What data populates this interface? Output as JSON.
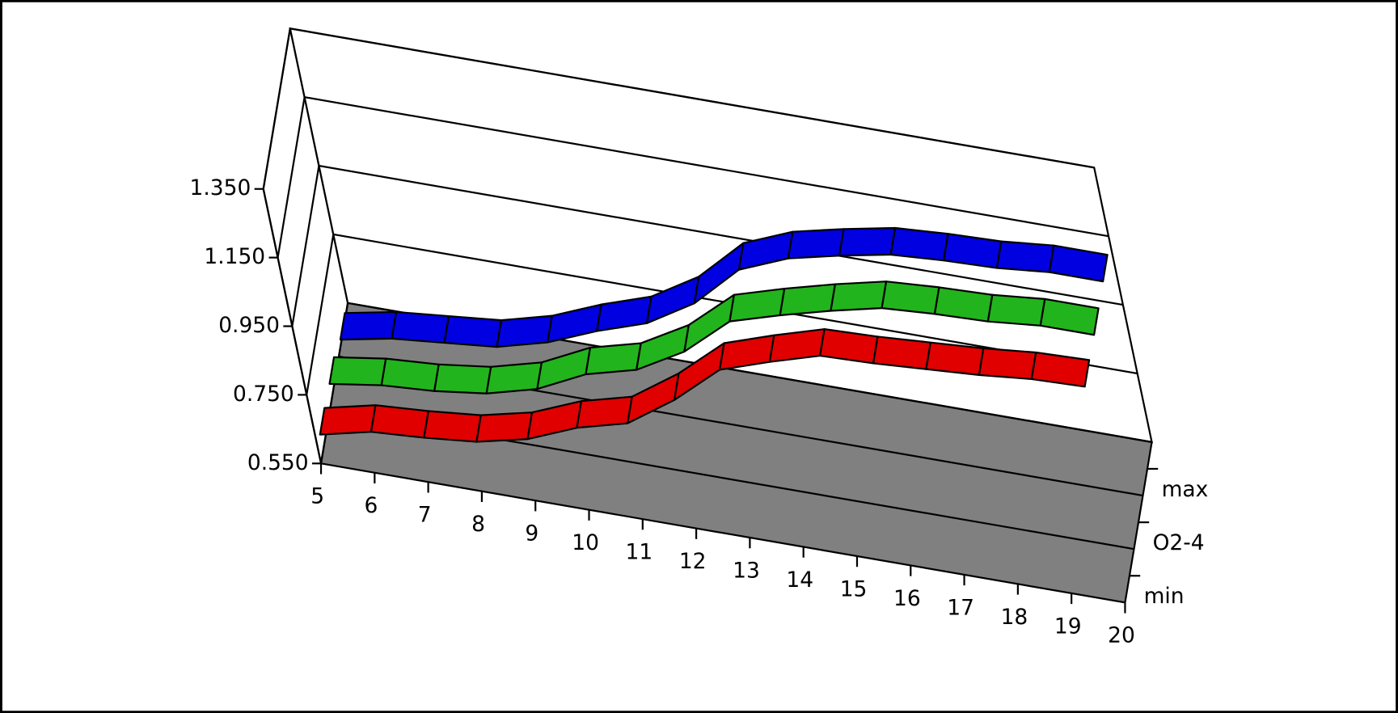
{
  "chart_data": {
    "type": "ribbon3d",
    "x": [
      5,
      6,
      7,
      8,
      9,
      10,
      11,
      12,
      13,
      14,
      15,
      16,
      17,
      18,
      19,
      20
    ],
    "xlim": [
      5,
      20
    ],
    "ylim": [
      0.55,
      1.35
    ],
    "yticks": [
      {
        "value": 0.55,
        "label": "0.550"
      },
      {
        "value": 0.75,
        "label": "0.750"
      },
      {
        "value": 0.95,
        "label": "0.950"
      },
      {
        "value": 1.15,
        "label": "1.150"
      },
      {
        "value": 1.35,
        "label": "1.350"
      }
    ],
    "series": [
      {
        "name": "max",
        "color": "#0000e0",
        "values": [
          0.56,
          0.59,
          0.605,
          0.62,
          0.66,
          0.72,
          0.77,
          0.855,
          0.98,
          1.04,
          1.075,
          1.105,
          1.115,
          1.12,
          1.135,
          1.135
        ]
      },
      {
        "name": "O2-4",
        "color": "#22b41c",
        "values": [
          0.587,
          0.61,
          0.62,
          0.64,
          0.68,
          0.75,
          0.79,
          0.87,
          0.985,
          1.03,
          1.07,
          1.105,
          1.115,
          1.12,
          1.135,
          1.135
        ]
      },
      {
        "name": "min",
        "color": "#e00000",
        "values": [
          0.595,
          0.63,
          0.64,
          0.655,
          0.69,
          0.75,
          0.79,
          0.885,
          1.0,
          1.05,
          1.095,
          1.1,
          1.11,
          1.12,
          1.135,
          1.14
        ]
      }
    ]
  }
}
